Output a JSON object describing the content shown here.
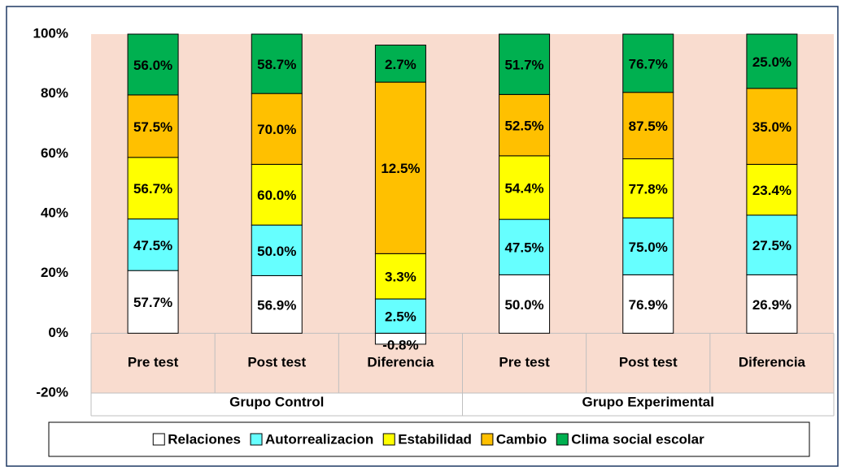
{
  "chart_data": {
    "type": "bar",
    "stacking": "percent",
    "groups": [
      {
        "name": "Grupo Control",
        "categories": [
          "Pre test",
          "Post test",
          "Diferencia"
        ]
      },
      {
        "name": "Grupo Experimental",
        "categories": [
          "Pre test",
          "Post test",
          "Diferencia"
        ]
      }
    ],
    "series": [
      {
        "name": "Relaciones",
        "color": "#ffffff",
        "values": [
          57.7,
          56.9,
          -0.8,
          50.0,
          76.9,
          26.9
        ],
        "value_labels": [
          "57.7%",
          "56.9%",
          "-0.8%",
          "50.0%",
          "76.9%",
          "26.9%"
        ]
      },
      {
        "name": "Autorrealizacion",
        "color": "#66ffff",
        "values": [
          47.5,
          50.0,
          2.5,
          47.5,
          75.0,
          27.5
        ],
        "value_labels": [
          "47.5%",
          "50.0%",
          "2.5%",
          "47.5%",
          "75.0%",
          "27.5%"
        ]
      },
      {
        "name": "Estabilidad",
        "color": "#ffff00",
        "values": [
          56.7,
          60.0,
          3.3,
          54.4,
          77.8,
          23.4
        ],
        "value_labels": [
          "56.7%",
          "60.0%",
          "3.3%",
          "54.4%",
          "77.8%",
          "23.4%"
        ]
      },
      {
        "name": "Cambio",
        "color": "#ffc000",
        "values": [
          57.5,
          70.0,
          12.5,
          52.5,
          87.5,
          35.0
        ],
        "value_labels": [
          "57.5%",
          "70.0%",
          "12.5%",
          "52.5%",
          "87.5%",
          "35.0%"
        ]
      },
      {
        "name": "Clima social escolar",
        "color": "#00b050",
        "values": [
          56.0,
          58.7,
          2.7,
          51.7,
          76.7,
          25.0
        ],
        "value_labels": [
          "56.0%",
          "58.7%",
          "2.7%",
          "51.7%",
          "76.7%",
          "25.0%"
        ]
      }
    ],
    "ylim": [
      -20,
      100
    ],
    "yticks": [
      {
        "value": -20,
        "label": "-20%"
      },
      {
        "value": 0,
        "label": "0%"
      },
      {
        "value": 20,
        "label": "20%"
      },
      {
        "value": 40,
        "label": "40%"
      },
      {
        "value": 60,
        "label": "60%"
      },
      {
        "value": 80,
        "label": "80%"
      },
      {
        "value": 100,
        "label": "100%"
      }
    ],
    "legend": "bottom",
    "grid": false
  }
}
